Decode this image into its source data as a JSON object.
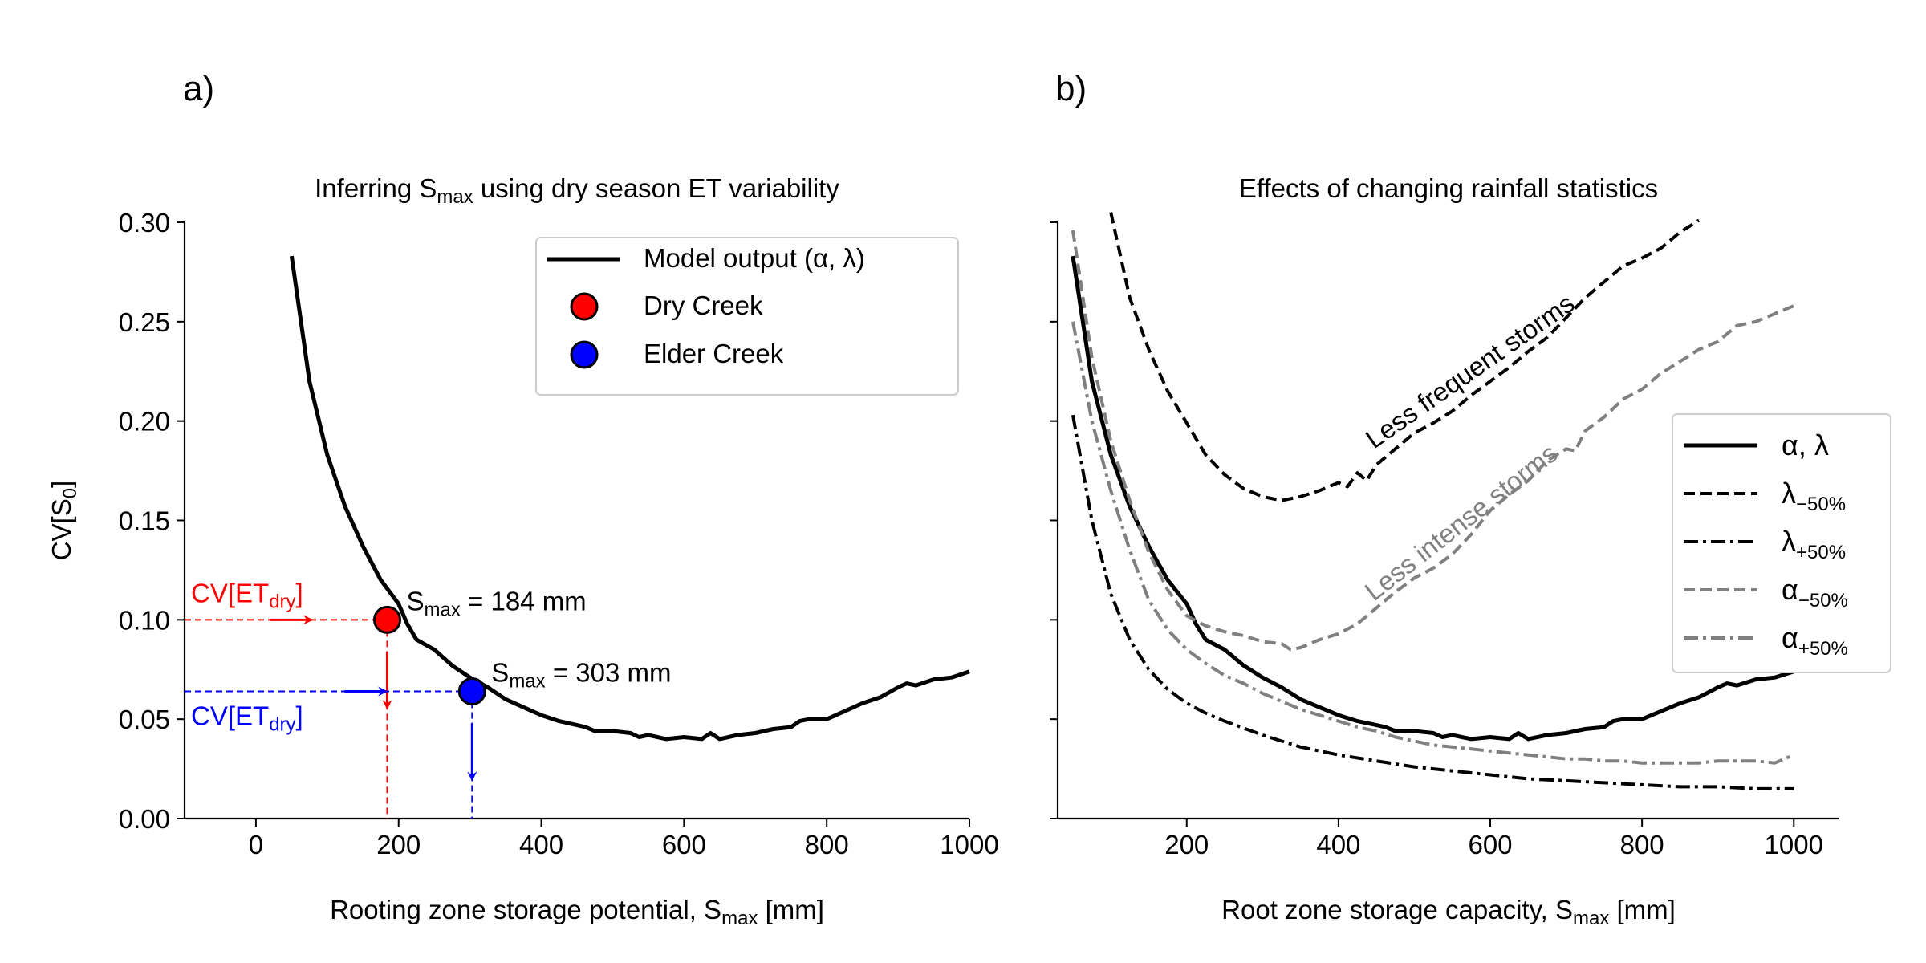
{
  "chart_data": [
    {
      "type": "line",
      "panel_label": "a)",
      "title_parts": [
        "Inferring S",
        "max",
        " using dry season ET variability"
      ],
      "xlabel_parts": [
        "Rooting zone storage potential, S",
        "max",
        " [mm]"
      ],
      "ylabel_parts": [
        "CV[S",
        "0",
        "]"
      ],
      "xlim": [
        -100,
        1000
      ],
      "ylim": [
        0,
        0.3
      ],
      "xticks": [
        0,
        200,
        400,
        600,
        800,
        1000
      ],
      "xtick_labels": [
        "0",
        "200",
        "400",
        "600",
        "800",
        "1000"
      ],
      "yticks": [
        0,
        0.05,
        0.1,
        0.15,
        0.2,
        0.25,
        0.3
      ],
      "ytick_labels": [
        "0.00",
        "0.05",
        "0.10",
        "0.15",
        "0.20",
        "0.25",
        "0.30"
      ],
      "grid": false,
      "legend_position": "upper-right",
      "legend": [
        {
          "label_parts": [
            "Model output (",
            "α",
            ", ",
            "λ",
            ")"
          ],
          "kind": "line",
          "color": "#000000"
        },
        {
          "label": "Dry Creek",
          "kind": "marker",
          "color": "#ff0000"
        },
        {
          "label": "Elder Creek",
          "kind": "marker",
          "color": "#0000ff"
        }
      ],
      "series": [
        {
          "name": "Model output (α, λ)",
          "color": "#000000",
          "style": "solid",
          "x": [
            50,
            75,
            100,
            125,
            150,
            175,
            200,
            212,
            225,
            250,
            275,
            300,
            325,
            350,
            375,
            400,
            425,
            450,
            462,
            475,
            500,
            525,
            537,
            550,
            575,
            600,
            625,
            637,
            650,
            675,
            700,
            725,
            750,
            762,
            775,
            800,
            825,
            850,
            875,
            900,
            912,
            925,
            950,
            975,
            1000
          ],
          "y": [
            0.283,
            0.22,
            0.183,
            0.157,
            0.137,
            0.12,
            0.108,
            0.098,
            0.09,
            0.085,
            0.077,
            0.071,
            0.066,
            0.06,
            0.056,
            0.052,
            0.049,
            0.047,
            0.046,
            0.044,
            0.044,
            0.043,
            0.041,
            0.042,
            0.04,
            0.041,
            0.04,
            0.043,
            0.04,
            0.042,
            0.043,
            0.045,
            0.046,
            0.049,
            0.05,
            0.05,
            0.054,
            0.058,
            0.061,
            0.066,
            0.068,
            0.067,
            0.07,
            0.071,
            0.074
          ]
        }
      ],
      "sites": [
        {
          "name": "Dry Creek",
          "color": "#ff0000",
          "smax": 184,
          "cv": 0.1,
          "label_parts": [
            "S",
            "max",
            " = 184 mm"
          ],
          "cv_label_parts": [
            "CV[ET",
            "dry",
            "]"
          ]
        },
        {
          "name": "Elder Creek",
          "color": "#0000ff",
          "smax": 303,
          "cv": 0.064,
          "label_parts": [
            "S",
            "max",
            " = 303 mm"
          ],
          "cv_label_parts": [
            "CV[ET",
            "dry",
            "]"
          ]
        }
      ]
    },
    {
      "type": "line",
      "panel_label": "b)",
      "title": "Effects of changing rainfall statistics",
      "xlabel_parts": [
        "Root zone storage capacity, S",
        "max",
        " [mm]"
      ],
      "xlim": [
        30,
        1060
      ],
      "ylim": [
        0,
        0.3
      ],
      "xticks": [
        200,
        400,
        600,
        800,
        1000
      ],
      "xtick_labels": [
        "200",
        "400",
        "600",
        "800",
        "1000"
      ],
      "yticks": [
        0,
        0.05,
        0.1,
        0.15,
        0.2,
        0.25,
        0.3
      ],
      "grid": false,
      "legend_position": "center-right",
      "annotations": [
        {
          "text": "Less frequent storms",
          "color": "#000000"
        },
        {
          "text": "Less intense storms",
          "color": "#808080"
        }
      ],
      "series": [
        {
          "name_parts": [
            "α",
            ", ",
            "λ"
          ],
          "sub": "",
          "color": "#000000",
          "style": "solid",
          "x": [
            50,
            75,
            100,
            125,
            150,
            175,
            200,
            212,
            225,
            250,
            275,
            300,
            325,
            350,
            375,
            400,
            425,
            450,
            462,
            475,
            500,
            525,
            537,
            550,
            575,
            600,
            625,
            637,
            650,
            675,
            700,
            725,
            750,
            762,
            775,
            800,
            825,
            850,
            875,
            900,
            912,
            925,
            950,
            975,
            1000
          ],
          "y": [
            0.283,
            0.22,
            0.183,
            0.157,
            0.137,
            0.12,
            0.108,
            0.098,
            0.09,
            0.085,
            0.077,
            0.071,
            0.066,
            0.06,
            0.056,
            0.052,
            0.049,
            0.047,
            0.046,
            0.044,
            0.044,
            0.043,
            0.041,
            0.042,
            0.04,
            0.041,
            0.04,
            0.043,
            0.04,
            0.042,
            0.043,
            0.045,
            0.046,
            0.049,
            0.05,
            0.05,
            0.054,
            0.058,
            0.061,
            0.066,
            0.068,
            0.067,
            0.07,
            0.071,
            0.074
          ]
        },
        {
          "name_parts": [
            "λ"
          ],
          "sub": "−50%",
          "color": "#000000",
          "style": "dashed",
          "x": [
            100,
            125,
            150,
            175,
            200,
            225,
            250,
            275,
            300,
            325,
            350,
            375,
            400,
            412,
            425,
            437,
            450,
            475,
            500,
            525,
            550,
            575,
            600,
            625,
            650,
            675,
            700,
            725,
            750,
            775,
            800,
            825,
            850,
            875
          ],
          "y": [
            0.305,
            0.262,
            0.236,
            0.215,
            0.199,
            0.183,
            0.173,
            0.166,
            0.162,
            0.16,
            0.162,
            0.165,
            0.169,
            0.167,
            0.174,
            0.17,
            0.178,
            0.186,
            0.194,
            0.199,
            0.205,
            0.213,
            0.22,
            0.227,
            0.235,
            0.242,
            0.252,
            0.262,
            0.27,
            0.278,
            0.282,
            0.287,
            0.295,
            0.301
          ]
        },
        {
          "name_parts": [
            "λ"
          ],
          "sub": "+50%",
          "color": "#000000",
          "style": "dashdot",
          "x": [
            50,
            75,
            100,
            125,
            150,
            175,
            200,
            225,
            250,
            300,
            350,
            400,
            450,
            500,
            550,
            600,
            650,
            700,
            750,
            800,
            850,
            900,
            950,
            1000
          ],
          "y": [
            0.203,
            0.15,
            0.113,
            0.09,
            0.075,
            0.065,
            0.058,
            0.053,
            0.049,
            0.042,
            0.036,
            0.032,
            0.029,
            0.026,
            0.024,
            0.022,
            0.02,
            0.019,
            0.018,
            0.017,
            0.016,
            0.016,
            0.015,
            0.015
          ]
        },
        {
          "name_parts": [
            "α"
          ],
          "sub": "−50%",
          "color": "#808080",
          "style": "dashed",
          "x": [
            50,
            75,
            100,
            125,
            150,
            175,
            200,
            225,
            250,
            275,
            300,
            325,
            337,
            350,
            375,
            400,
            425,
            450,
            475,
            500,
            525,
            550,
            575,
            600,
            625,
            650,
            675,
            700,
            712,
            725,
            750,
            775,
            800,
            825,
            850,
            875,
            900,
            925,
            950,
            975,
            1000
          ],
          "y": [
            0.296,
            0.232,
            0.19,
            0.16,
            0.134,
            0.115,
            0.102,
            0.097,
            0.094,
            0.092,
            0.089,
            0.088,
            0.085,
            0.086,
            0.09,
            0.093,
            0.098,
            0.106,
            0.114,
            0.121,
            0.126,
            0.133,
            0.143,
            0.155,
            0.163,
            0.17,
            0.18,
            0.186,
            0.185,
            0.195,
            0.202,
            0.211,
            0.216,
            0.224,
            0.23,
            0.236,
            0.24,
            0.248,
            0.25,
            0.254,
            0.258
          ]
        },
        {
          "name_parts": [
            "α"
          ],
          "sub": "+50%",
          "color": "#808080",
          "style": "dashdot",
          "x": [
            50,
            75,
            100,
            125,
            150,
            175,
            200,
            225,
            250,
            275,
            300,
            325,
            350,
            375,
            400,
            425,
            450,
            475,
            500,
            525,
            550,
            575,
            600,
            625,
            650,
            675,
            700,
            725,
            750,
            775,
            800,
            825,
            850,
            875,
            900,
            925,
            950,
            975,
            1000
          ],
          "y": [
            0.25,
            0.2,
            0.165,
            0.135,
            0.11,
            0.095,
            0.085,
            0.078,
            0.072,
            0.068,
            0.063,
            0.059,
            0.055,
            0.052,
            0.049,
            0.046,
            0.044,
            0.041,
            0.039,
            0.037,
            0.036,
            0.035,
            0.034,
            0.033,
            0.032,
            0.031,
            0.03,
            0.03,
            0.029,
            0.029,
            0.028,
            0.028,
            0.028,
            0.028,
            0.029,
            0.029,
            0.029,
            0.028,
            0.032
          ]
        }
      ]
    }
  ]
}
